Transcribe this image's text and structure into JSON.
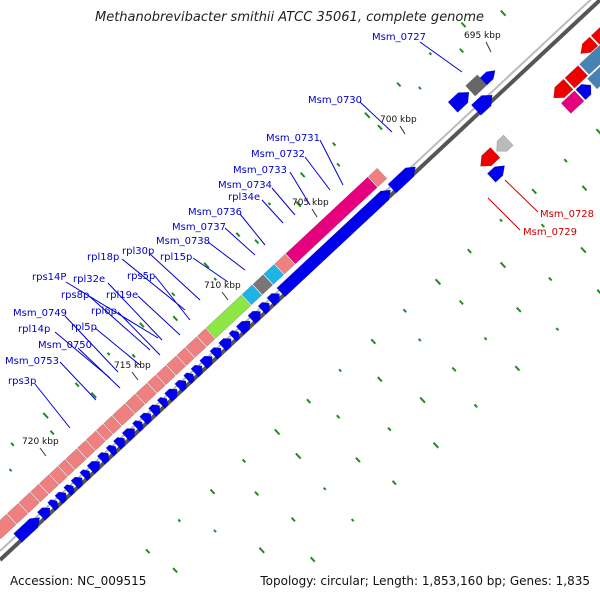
{
  "title": "Methanobrevibacter smithii ATCC 35061, complete genome",
  "footer": {
    "accession": "Accession: NC_009515",
    "summary": "Topology: circular; Length: 1,853,160 bp; Genes: 1,835"
  },
  "scale_ticks": [
    "695 kbp",
    "700 kbp",
    "705 kbp",
    "710 kbp",
    "715 kbp",
    "720 kbp"
  ],
  "gene_labels_left": [
    "Msm_0727",
    "Msm_0730",
    "Msm_0731",
    "Msm_0732",
    "Msm_0733",
    "Msm_0734",
    "rpl34e",
    "Msm_0736",
    "Msm_0737",
    "Msm_0738",
    "rpl15p",
    "rpl30p",
    "rpl18p",
    "rps5p",
    "rps14P",
    "rpl32e",
    "rpl19e",
    "rps8p",
    "rpl6p",
    "Msm_0749",
    "rpl5p",
    "rpl14p",
    "Msm_0750",
    "Msm_0753",
    "rps3p"
  ],
  "gene_labels_right": [
    "Msm_0728",
    "Msm_0729"
  ],
  "colors": {
    "label_blue": "#0000cc",
    "label_red": "#cc0000",
    "backbone": "#555555",
    "forward_cds": "#0000ee",
    "reverse_cds": "#ee0000",
    "rrna": "#f08080",
    "pink": "#e6007e",
    "grey": "#777777",
    "cyan": "#1eb4e6",
    "lime": "#8ce646",
    "steel": "#4682b4",
    "gc_tick": "#228b22"
  }
}
